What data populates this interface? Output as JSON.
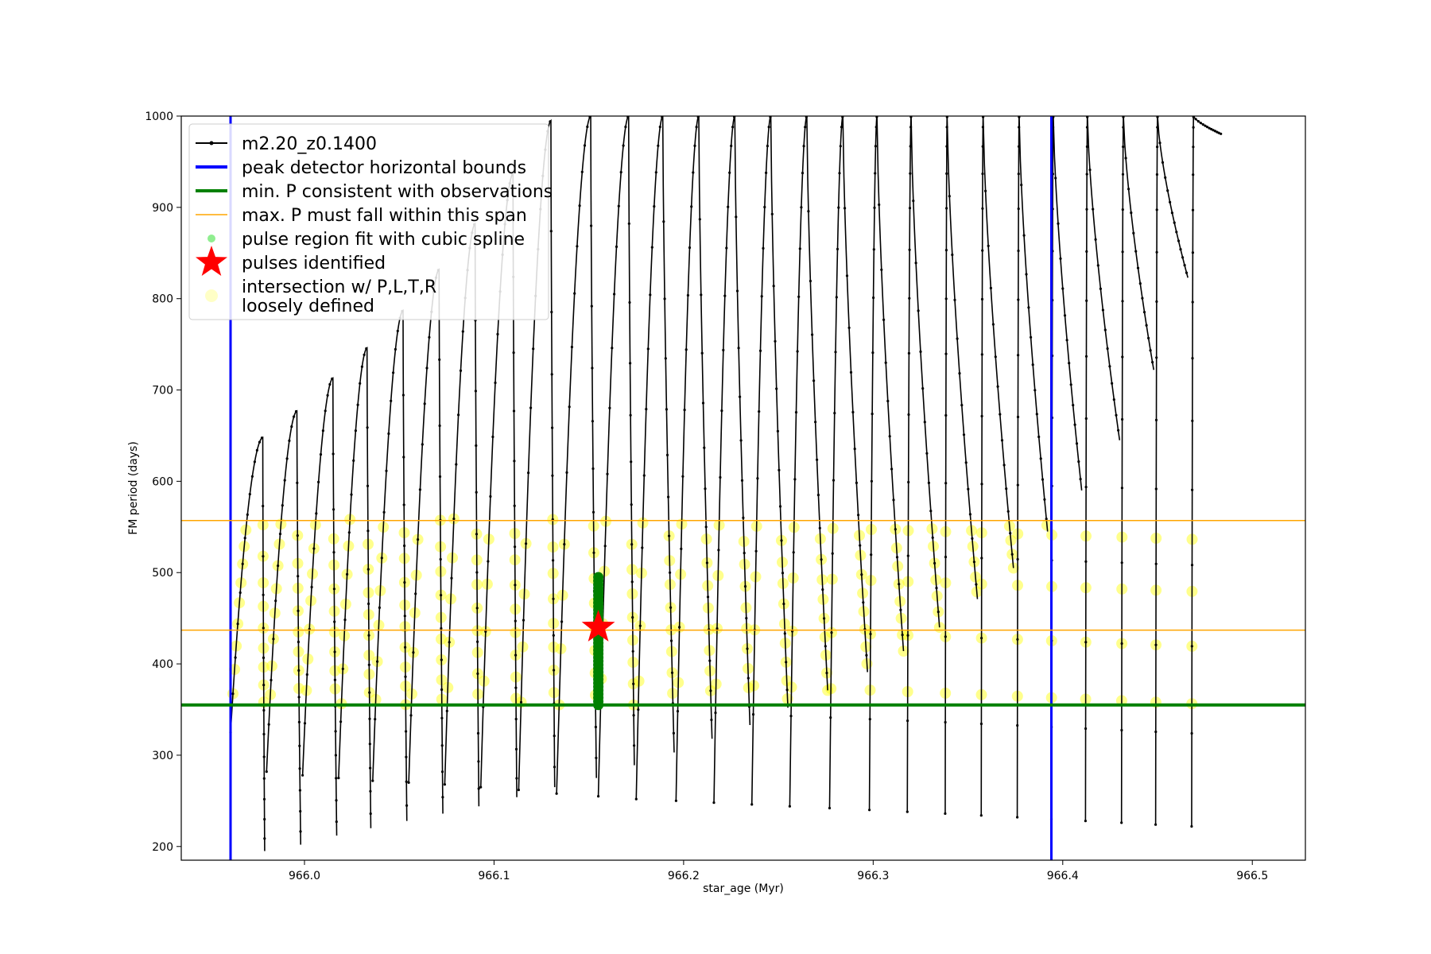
{
  "chart_data": {
    "type": "line",
    "xlabel": "star_age (Myr)",
    "ylabel": "FM period (days)",
    "xlim": [
      965.935,
      966.528
    ],
    "ylim": [
      185,
      1000
    ],
    "xticks": [
      966.0,
      966.1,
      966.2,
      966.3,
      966.4,
      966.5
    ],
    "xtick_labels": [
      "966.0",
      "966.1",
      "966.2",
      "966.3",
      "966.4",
      "966.5"
    ],
    "yticks": [
      200,
      300,
      400,
      500,
      600,
      700,
      800,
      900,
      1000
    ],
    "ytick_labels": [
      "200",
      "300",
      "400",
      "500",
      "600",
      "700",
      "800",
      "900",
      "1000"
    ],
    "grid": false,
    "legend_position": "upper-left",
    "legend": [
      {
        "label": "m2.20_z0.1400",
        "marker": "line-dot",
        "color": "#000000"
      },
      {
        "label": "peak detector horizontal bounds",
        "marker": "thick-line",
        "color": "#0000ff"
      },
      {
        "label": "min. P consistent with observations",
        "marker": "thick-line",
        "color": "#008000"
      },
      {
        "label": "max. P must fall within this span",
        "marker": "thin-line",
        "color": "#ffa500"
      },
      {
        "label": "pulse region fit with cubic spline",
        "marker": "dot",
        "color": "#90ee90"
      },
      {
        "label": "pulses identified",
        "marker": "star",
        "color": "#ff0000"
      },
      {
        "label": "intersection w/ P,L,T,R\nloosely defined",
        "marker": "circle",
        "color": "#ffffa0"
      }
    ],
    "series_color": "#000000",
    "peak_detector_bounds_x": [
      965.961,
      966.394
    ],
    "min_period_line_y": 355,
    "max_period_span_y": [
      437,
      557
    ],
    "pulse_spline_fit": {
      "x": 966.155,
      "y_range": [
        355,
        497
      ],
      "color": "#008000"
    },
    "pulse_identified": {
      "x": 966.155,
      "y": 440,
      "color": "#ff0000"
    },
    "cycles": [
      {
        "x0": 965.961,
        "x_peak": 965.978,
        "x_end": 965.979,
        "p_start": 325,
        "p_peak": 648,
        "p_min": 195
      },
      {
        "x0": 965.98,
        "x_peak": 965.996,
        "x_end": 965.998,
        "p_start": 282,
        "p_peak": 677,
        "p_min": 202
      },
      {
        "x0": 965.999,
        "x_peak": 966.015,
        "x_end": 966.017,
        "p_start": 278,
        "p_peak": 713,
        "p_min": 212
      },
      {
        "x0": 966.018,
        "x_peak": 966.033,
        "x_end": 966.035,
        "p_start": 275,
        "p_peak": 746,
        "p_min": 220
      },
      {
        "x0": 966.036,
        "x_peak": 966.052,
        "x_end": 966.054,
        "p_start": 272,
        "p_peak": 787,
        "p_min": 228
      },
      {
        "x0": 966.055,
        "x_peak": 966.071,
        "x_end": 966.073,
        "p_start": 270,
        "p_peak": 832,
        "p_min": 236
      },
      {
        "x0": 966.074,
        "x_peak": 966.09,
        "x_end": 966.092,
        "p_start": 268,
        "p_peak": 882,
        "p_min": 244
      },
      {
        "x0": 966.093,
        "x_peak": 966.11,
        "x_end": 966.112,
        "p_start": 265,
        "p_peak": 937,
        "p_min": 254
      },
      {
        "x0": 966.113,
        "x_peak": 966.13,
        "x_end": 966.132,
        "p_start": 262,
        "p_peak": 995,
        "p_min": 265
      },
      {
        "x0": 966.133,
        "x_peak": 966.151,
        "x_end": 966.154,
        "p_start": 258,
        "p_peak": 1000,
        "p_min": 275
      },
      {
        "x0": 966.155,
        "x_peak": 966.171,
        "x_end": 966.174,
        "p_start": 255,
        "p_peak": 1000,
        "p_min": 289
      },
      {
        "x0": 966.175,
        "x_peak": 966.189,
        "x_end": 966.195,
        "p_start": 252,
        "p_peak": 1000,
        "p_min": 303
      },
      {
        "x0": 966.196,
        "x_peak": 966.208,
        "x_end": 966.215,
        "p_start": 250,
        "p_peak": 1000,
        "p_min": 318
      },
      {
        "x0": 966.216,
        "x_peak": 966.227,
        "x_end": 966.235,
        "p_start": 248,
        "p_peak": 1000,
        "p_min": 333
      },
      {
        "x0": 966.236,
        "x_peak": 966.246,
        "x_end": 966.255,
        "p_start": 246,
        "p_peak": 1000,
        "p_min": 352
      },
      {
        "x0": 966.256,
        "x_peak": 966.265,
        "x_end": 966.276,
        "p_start": 244,
        "p_peak": 1000,
        "p_min": 371
      },
      {
        "x0": 966.277,
        "x_peak": 966.284,
        "x_end": 966.297,
        "p_start": 242,
        "p_peak": 1000,
        "p_min": 391
      },
      {
        "x0": 966.298,
        "x_peak": 966.302,
        "x_end": 966.316,
        "p_start": 240,
        "p_peak": 1000,
        "p_min": 414
      },
      {
        "x0": 966.318,
        "x_peak": 966.32,
        "x_end": 966.335,
        "p_start": 238,
        "p_peak": 1000,
        "p_min": 440
      },
      {
        "x0": 966.338,
        "x_peak": 966.339,
        "x_end": 966.355,
        "p_start": 236,
        "p_peak": 1000,
        "p_min": 471
      },
      {
        "x0": 966.357,
        "x_peak": 966.358,
        "x_end": 966.374,
        "p_start": 234,
        "p_peak": 1000,
        "p_min": 505
      },
      {
        "x0": 966.376,
        "x_peak": 966.377,
        "x_end": 966.392,
        "p_start": 232,
        "p_peak": 1000,
        "p_min": 545
      },
      {
        "x0": 966.394,
        "x_peak": 966.395,
        "x_end": 966.41,
        "p_start": 230,
        "p_peak": 1000,
        "p_min": 590
      },
      {
        "x0": 966.412,
        "x_peak": 966.413,
        "x_end": 966.43,
        "p_start": 228,
        "p_peak": 1000,
        "p_min": 645
      },
      {
        "x0": 966.431,
        "x_peak": 966.432,
        "x_end": 966.448,
        "p_start": 226,
        "p_peak": 1000,
        "p_min": 722
      },
      {
        "x0": 966.449,
        "x_peak": 966.45,
        "x_end": 966.466,
        "p_start": 224,
        "p_peak": 1000,
        "p_min": 823
      },
      {
        "x0": 966.468,
        "x_peak": 966.469,
        "x_end": 966.484,
        "p_start": 222,
        "p_peak": 1000,
        "p_min": 980
      }
    ]
  }
}
